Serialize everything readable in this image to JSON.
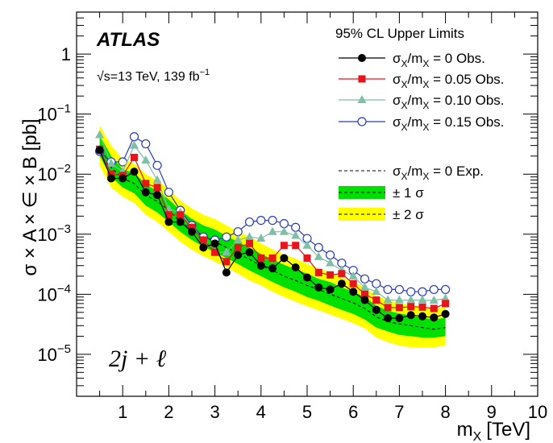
{
  "chart_data": {
    "type": "line",
    "title": "",
    "xlabel": "m",
    "xlabel_sub": "X",
    "xlabel_unit": "[TeV]",
    "ylabel": "σ × A × ∈ × B [pb]",
    "xlim": [
      0,
      10
    ],
    "ylim": [
      2e-06,
      5
    ],
    "yscale": "log",
    "grid": false,
    "x_ticks": [
      1,
      2,
      3,
      4,
      5,
      6,
      7,
      8,
      9,
      10
    ],
    "x_tick_labels": [
      "1",
      "2",
      "3",
      "4",
      "5",
      "6",
      "7",
      "8",
      "9",
      "10"
    ],
    "y_ticks": [
      1e-05,
      0.0001,
      0.001,
      0.01,
      0.1,
      1
    ],
    "y_tick_labels": [
      {
        "base": "10",
        "exp": "−5"
      },
      {
        "base": "10",
        "exp": "−4"
      },
      {
        "base": "10",
        "exp": "−3"
      },
      {
        "base": "10",
        "exp": "−2"
      },
      {
        "base": "10",
        "exp": "−1"
      },
      {
        "base": "1",
        "exp": ""
      }
    ],
    "experiment": "ATLAS",
    "energy_label": "√s=13 TeV,  139 fb",
    "energy_label_exp": "−1",
    "channel_label": "2j + ℓ",
    "legend_title": "95% CL Upper Limits",
    "legend_position": "top-right",
    "x": [
      0.5,
      0.75,
      1.0,
      1.25,
      1.5,
      1.75,
      2.0,
      2.25,
      2.5,
      2.75,
      3.0,
      3.25,
      3.5,
      3.75,
      4.0,
      4.25,
      4.5,
      4.75,
      5.0,
      5.25,
      5.5,
      5.75,
      6.0,
      6.25,
      6.5,
      6.75,
      7.0,
      7.25,
      7.5,
      7.75,
      8.0
    ],
    "series": [
      {
        "name": "σ_X/m_X = 0 Obs.",
        "label_base": "σ",
        "label_sub1": "X",
        "label_mid": "/m",
        "label_sub2": "X",
        "label_tail": " = 0 Obs.",
        "color": "#000000",
        "marker": "filled-circle",
        "style": "solid",
        "values": [
          0.025,
          0.0085,
          0.0085,
          0.011,
          0.005,
          0.0045,
          0.0016,
          0.0016,
          0.0011,
          0.0006,
          0.0007,
          0.00023,
          0.00045,
          0.0005,
          0.0003,
          0.00027,
          0.0004,
          0.00028,
          0.00019,
          0.00013,
          0.00012,
          0.00015,
          0.00011,
          8e-05,
          5.5e-05,
          4e-05,
          4e-05,
          4.5e-05,
          4.3e-05,
          4.1e-05,
          4.7e-05
        ]
      },
      {
        "name": "σ_X/m_X = 0.05 Obs.",
        "label_base": "σ",
        "label_sub1": "X",
        "label_mid": "/m",
        "label_sub2": "X",
        "label_tail": " = 0.05 Obs.",
        "color": "#e8141b",
        "marker": "filled-square",
        "style": "solid",
        "values": [
          0.026,
          0.01,
          0.0095,
          0.019,
          0.007,
          0.006,
          0.0021,
          0.0021,
          0.0013,
          0.0008,
          0.0005,
          0.00035,
          0.0006,
          0.0007,
          0.0004,
          0.0004,
          0.00065,
          0.00065,
          0.0004,
          0.00023,
          0.00021,
          0.00022,
          0.00015,
          0.0001,
          8e-05,
          6e-05,
          6e-05,
          6.2e-05,
          6.1e-05,
          5.8e-05,
          7e-05
        ]
      },
      {
        "name": "σ_X/m_X = 0.10 Obs.",
        "label_base": "σ",
        "label_sub1": "X",
        "label_mid": "/m",
        "label_sub2": "X",
        "label_tail": " = 0.10 Obs.",
        "color": "#7fbfa8",
        "marker": "filled-triangle",
        "style": "solid",
        "values": [
          0.045,
          0.015,
          0.011,
          0.03,
          0.017,
          0.008,
          0.0026,
          0.0023,
          0.0013,
          0.0008,
          0.0005,
          0.0005,
          0.0008,
          0.0009,
          0.00085,
          0.0011,
          0.0011,
          0.00095,
          0.00065,
          0.00042,
          0.00033,
          0.00025,
          0.0002,
          0.00013,
          0.00011,
          8e-05,
          8e-05,
          8e-05,
          8e-05,
          7.9e-05,
          8.5e-05
        ]
      },
      {
        "name": "σ_X/m_X = 0.15 Obs.",
        "label_base": "σ",
        "label_sub1": "X",
        "label_mid": "/m",
        "label_sub2": "X",
        "label_tail": " = 0.15 Obs.",
        "color": "#2b3ab8",
        "marker": "open-circle",
        "style": "solid",
        "values": [
          0.024,
          0.016,
          0.016,
          0.042,
          0.032,
          0.014,
          0.005,
          0.0025,
          0.0014,
          0.0009,
          0.0008,
          0.0009,
          0.0011,
          0.0016,
          0.0017,
          0.0017,
          0.0015,
          0.0013,
          0.00085,
          0.0006,
          0.00045,
          0.00033,
          0.00025,
          0.00018,
          0.00015,
          0.00012,
          0.00012,
          0.00011,
          0.00011,
          0.00012,
          0.00012
        ]
      }
    ],
    "expected": {
      "name": "σ_X/m_X = 0  Exp.",
      "label_base": "σ",
      "label_sub1": "X",
      "label_mid": "/m",
      "label_sub2": "X",
      "label_tail": " = 0  Exp.",
      "color": "#000000",
      "style": "dashed",
      "values": [
        0.03,
        0.013,
        0.0085,
        0.007,
        0.0045,
        0.0035,
        0.0025,
        0.0016,
        0.0012,
        0.00092,
        0.00075,
        0.0006,
        0.00048,
        0.00038,
        0.0003,
        0.00025,
        0.0002,
        0.00017,
        0.00014,
        0.00012,
        0.0001,
        8.5e-05,
        7.2e-05,
        5.8e-05,
        4.2e-05,
        3.5e-05,
        3.2e-05,
        3e-05,
        2.8e-05,
        2.6e-05,
        2.8e-05
      ],
      "band_1sigma": {
        "name": "± 1 σ",
        "color": "#00e000",
        "low": [
          0.02,
          0.009,
          0.006,
          0.0048,
          0.003,
          0.0023,
          0.0016,
          0.0011,
          0.0008,
          0.00062,
          0.0005,
          0.0004,
          0.00032,
          0.00025,
          0.0002,
          0.00016,
          0.00013,
          0.00011,
          9e-05,
          7.8e-05,
          6.5e-05,
          5.5e-05,
          4.7e-05,
          3.8e-05,
          2.8e-05,
          2.4e-05,
          2.1e-05,
          2e-05,
          1.9e-05,
          1.9e-05,
          2e-05
        ],
        "high": [
          0.045,
          0.02,
          0.012,
          0.0105,
          0.0068,
          0.0052,
          0.0038,
          0.0025,
          0.0018,
          0.0014,
          0.0012,
          0.00093,
          0.00075,
          0.0006,
          0.00047,
          0.00038,
          0.00031,
          0.00026,
          0.00022,
          0.00018,
          0.00016,
          0.00013,
          0.00011,
          9e-05,
          6.5e-05,
          5.3e-05,
          4.8e-05,
          4.4e-05,
          4.1e-05,
          3.8e-05,
          4.1e-05
        ]
      },
      "band_2sigma": {
        "name": "± 2 σ",
        "color": "#ffff00",
        "low": [
          0.014,
          0.006,
          0.0042,
          0.0033,
          0.0021,
          0.0016,
          0.0011,
          0.00075,
          0.00055,
          0.00043,
          0.00035,
          0.00028,
          0.00022,
          0.00017,
          0.00014,
          0.00011,
          9e-05,
          7.5e-05,
          6.3e-05,
          5.4e-05,
          4.6e-05,
          3.9e-05,
          3.3e-05,
          2.7e-05,
          1.9e-05,
          1.6e-05,
          1.4e-05,
          1.3e-05,
          1.3e-05,
          1.3e-05,
          1.4e-05
        ],
        "high": [
          0.065,
          0.03,
          0.018,
          0.015,
          0.01,
          0.0078,
          0.0056,
          0.0036,
          0.0027,
          0.0021,
          0.0018,
          0.0014,
          0.0011,
          0.0009,
          0.0007,
          0.00056,
          0.00046,
          0.00039,
          0.00032,
          0.00027,
          0.00023,
          0.00019,
          0.00016,
          0.00013,
          9.5e-05,
          8e-05,
          7e-05,
          6.6e-05,
          6.2e-05,
          5.8e-05,
          6e-05
        ]
      }
    }
  }
}
